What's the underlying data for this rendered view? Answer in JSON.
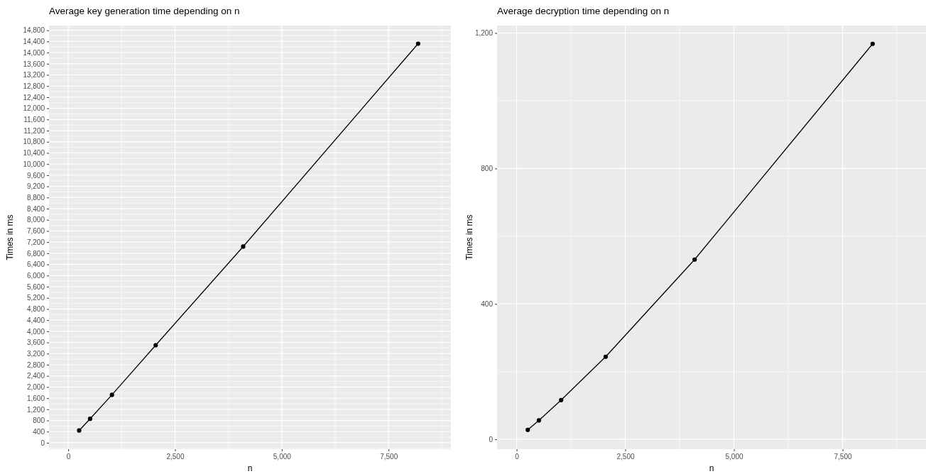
{
  "chart_data": [
    {
      "type": "line",
      "title": "Average key generation time depending on n",
      "xlabel": "n",
      "ylabel": "Times in ms",
      "x": [
        256,
        512,
        1024,
        2048,
        4096,
        8192
      ],
      "series": [
        {
          "color": "#000000",
          "values": [
            440,
            860,
            1720,
            3500,
            7040,
            14320
          ]
        }
      ],
      "xlim": [
        -450,
        8960
      ],
      "xticks": [
        {
          "value": 0,
          "label": "0"
        },
        {
          "value": 2500,
          "label": "2,500"
        },
        {
          "value": 5000,
          "label": "5,000"
        },
        {
          "value": 7500,
          "label": "7,500"
        }
      ],
      "ylim": [
        -230,
        14970
      ],
      "yticks": [
        {
          "value": 0,
          "label": "0"
        },
        {
          "value": 400,
          "label": "400"
        },
        {
          "value": 800,
          "label": "800"
        },
        {
          "value": 1200,
          "label": "1,200"
        },
        {
          "value": 1600,
          "label": "1,600"
        },
        {
          "value": 2000,
          "label": "2,000"
        },
        {
          "value": 2400,
          "label": "2,400"
        },
        {
          "value": 2800,
          "label": "2,800"
        },
        {
          "value": 3200,
          "label": "3,200"
        },
        {
          "value": 3600,
          "label": "3,600"
        },
        {
          "value": 4000,
          "label": "4,000"
        },
        {
          "value": 4400,
          "label": "4,400"
        },
        {
          "value": 4800,
          "label": "4,800"
        },
        {
          "value": 5200,
          "label": "5,200"
        },
        {
          "value": 5600,
          "label": "5,600"
        },
        {
          "value": 6000,
          "label": "6,000"
        },
        {
          "value": 6400,
          "label": "6,400"
        },
        {
          "value": 6800,
          "label": "6,800"
        },
        {
          "value": 7200,
          "label": "7,200"
        },
        {
          "value": 7600,
          "label": "7,600"
        },
        {
          "value": 8000,
          "label": "8,000"
        },
        {
          "value": 8400,
          "label": "8,400"
        },
        {
          "value": 8800,
          "label": "8,800"
        },
        {
          "value": 9200,
          "label": "9,200"
        },
        {
          "value": 9600,
          "label": "9,600"
        },
        {
          "value": 10000,
          "label": "10,000"
        },
        {
          "value": 10400,
          "label": "10,400"
        },
        {
          "value": 10800,
          "label": "10,800"
        },
        {
          "value": 11200,
          "label": "11,200"
        },
        {
          "value": 11600,
          "label": "11,600"
        },
        {
          "value": 12000,
          "label": "12,000"
        },
        {
          "value": 12400,
          "label": "12,400"
        },
        {
          "value": 12800,
          "label": "12,800"
        },
        {
          "value": 13200,
          "label": "13,200"
        },
        {
          "value": 13600,
          "label": "13,600"
        },
        {
          "value": 14000,
          "label": "14,000"
        },
        {
          "value": 14400,
          "label": "14,400"
        },
        {
          "value": 14800,
          "label": "14,800"
        }
      ],
      "grid": true,
      "marker": "circle",
      "line_style": "solid"
    },
    {
      "type": "line",
      "title": "Average decryption time depending on n",
      "xlabel": "n",
      "ylabel": "Times in ms",
      "x": [
        256,
        512,
        1024,
        2048,
        4096,
        8192
      ],
      "series": [
        {
          "color": "#000000",
          "values": [
            28,
            56,
            116,
            244,
            531,
            1168
          ]
        }
      ],
      "xlim": [
        -450,
        9420
      ],
      "xticks": [
        {
          "value": 0,
          "label": "0"
        },
        {
          "value": 2500,
          "label": "2,500"
        },
        {
          "value": 5000,
          "label": "5,000"
        },
        {
          "value": 7500,
          "label": "7,500"
        }
      ],
      "ylim": [
        -29,
        1222
      ],
      "yticks": [
        {
          "value": 0,
          "label": "0"
        },
        {
          "value": 400,
          "label": "400"
        },
        {
          "value": 800,
          "label": "800"
        },
        {
          "value": 1200,
          "label": "1,200"
        }
      ],
      "grid": true,
      "marker": "circle",
      "line_style": "solid"
    }
  ]
}
